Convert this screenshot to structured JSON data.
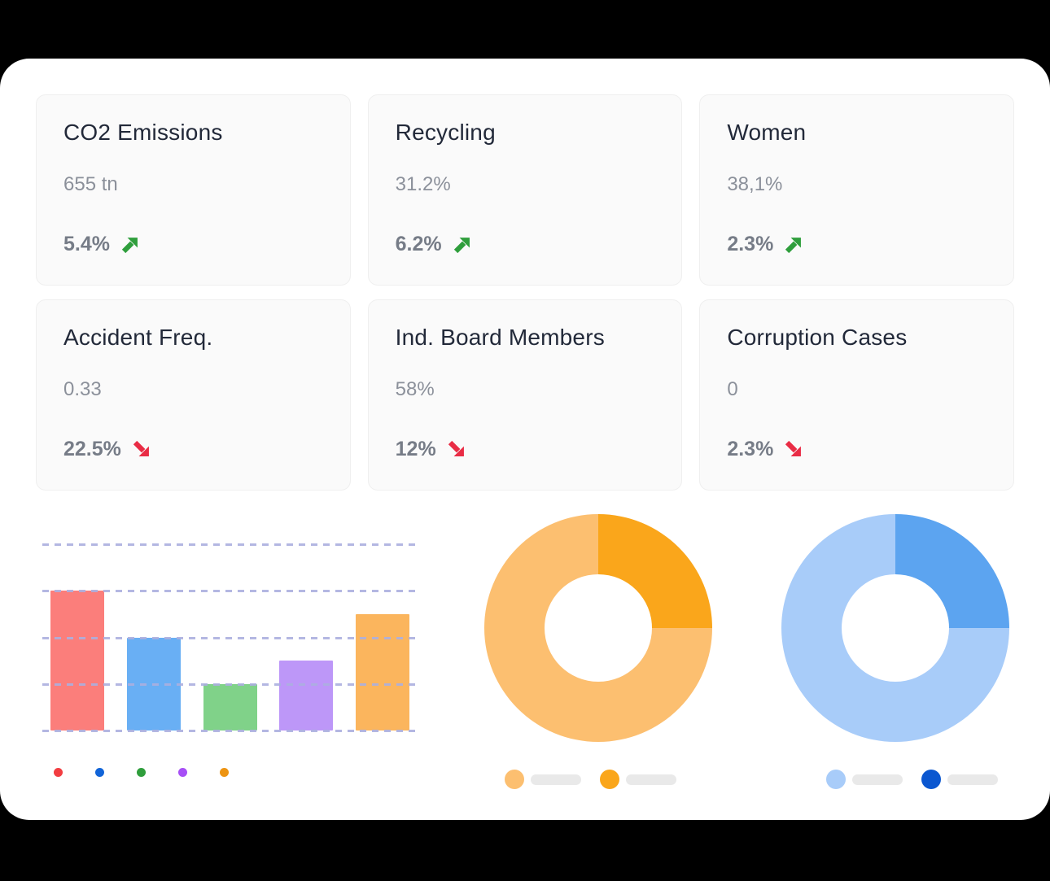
{
  "page": {
    "background": "#000000",
    "panel_background": "#ffffff"
  },
  "colors": {
    "positive": "#2f9e3c",
    "negative": "#e92c45",
    "card_background": "#fafafa",
    "card_border": "#efefef",
    "card_title": "#222939",
    "card_value": "#8b909a",
    "card_change": "#767c87",
    "legend_pill": "#e9e9e9"
  },
  "kpi_cards": [
    {
      "title": "CO2 Emissions",
      "value": "655 tn",
      "change": "5.4%",
      "trend": "up"
    },
    {
      "title": "Recycling",
      "value": "31.2%",
      "change": "6.2%",
      "trend": "up"
    },
    {
      "title": "Women",
      "value": "38,1%",
      "change": "2.3%",
      "trend": "up"
    },
    {
      "title": "Accident Freq.",
      "value": "0.33",
      "change": "22.5%",
      "trend": "down"
    },
    {
      "title": "Ind. Board Members",
      "value": "58%",
      "change": "12%",
      "trend": "down"
    },
    {
      "title": "Corruption Cases",
      "value": "0",
      "change": "2.3%",
      "trend": "down"
    }
  ],
  "icons": {
    "up": "arrow-up-right",
    "down": "arrow-down-right"
  },
  "chart_data": [
    {
      "type": "bar",
      "title": "",
      "xlabel": "",
      "ylabel": "",
      "categories": [
        "",
        "",
        "",
        "",
        ""
      ],
      "values": [
        3,
        2,
        1,
        1.5,
        2.5
      ],
      "ylim": [
        0,
        4
      ],
      "grid": {
        "style": "dashed-horizontal",
        "count": 5,
        "color": "#abafdf"
      },
      "bar_colors": [
        "#fb7e7b",
        "#69aff4",
        "#80d289",
        "#bd97f8",
        "#fbb55d"
      ],
      "legend": {
        "position": "bottom-left",
        "labels": [
          "",
          "",
          "",
          "",
          ""
        ],
        "dot_colors": [
          "#f23d41",
          "#1164d8",
          "#2f9e3c",
          "#a74ff6",
          "#ed9412"
        ]
      },
      "notes": "no axis tick labels shown; values read from evenly spaced dashed gridlines (1 unit apart)"
    },
    {
      "type": "pie",
      "donut": true,
      "title": "",
      "start_angle_deg": 0,
      "slices": [
        {
          "label": "",
          "value": 25,
          "color": "#faa61b"
        },
        {
          "label": "",
          "value": 75,
          "color": "#fcbf70"
        }
      ],
      "legend": {
        "position": "bottom",
        "style": "skeleton-pills-no-text",
        "dot_colors": [
          "#fcbf70",
          "#faa61b"
        ]
      }
    },
    {
      "type": "pie",
      "donut": true,
      "title": "",
      "start_angle_deg": 0,
      "slices": [
        {
          "label": "",
          "value": 25,
          "color": "#5ca4f0"
        },
        {
          "label": "",
          "value": 75,
          "color": "#a8ccf9"
        }
      ],
      "legend": {
        "position": "bottom",
        "style": "skeleton-pills-no-text",
        "dot_colors": [
          "#a8ccf9",
          "#0b57d0"
        ]
      }
    }
  ]
}
